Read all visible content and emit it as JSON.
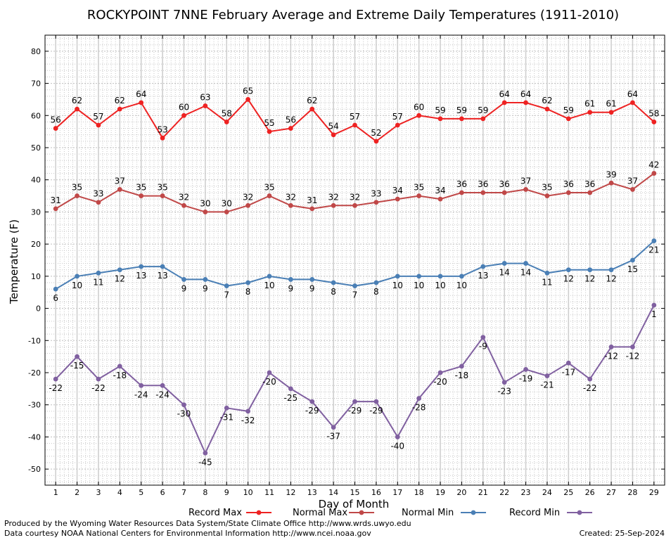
{
  "chart_data": {
    "type": "line",
    "title": "ROCKYPOINT 7NNE February Average and Extreme Daily Temperatures (1911-2010)",
    "xlabel": "Day of Month",
    "ylabel": "Temperature (F)",
    "x": [
      1,
      2,
      3,
      4,
      5,
      6,
      7,
      8,
      9,
      10,
      11,
      12,
      13,
      14,
      15,
      16,
      17,
      18,
      19,
      20,
      21,
      22,
      23,
      24,
      25,
      26,
      27,
      28,
      29
    ],
    "xlim": [
      0.5,
      29.5
    ],
    "ylim": [
      -55,
      85
    ],
    "yticks": [
      -50,
      -40,
      -30,
      -20,
      -10,
      0,
      10,
      20,
      30,
      40,
      50,
      60,
      70,
      80
    ],
    "grid": true,
    "legend_position": "bottom",
    "series": [
      {
        "name": "Record Max",
        "color": "#ee2222",
        "label_pos": "above",
        "values": [
          56,
          62,
          57,
          62,
          64,
          53,
          60,
          63,
          58,
          65,
          55,
          56,
          62,
          54,
          57,
          52,
          57,
          60,
          59,
          59,
          59,
          64,
          64,
          62,
          59,
          61,
          61,
          64,
          58
        ]
      },
      {
        "name": "Normal Max",
        "color": "#c04848",
        "label_pos": "above",
        "values": [
          31,
          35,
          33,
          37,
          35,
          35,
          32,
          30,
          30,
          32,
          35,
          32,
          31,
          32,
          32,
          33,
          34,
          35,
          34,
          36,
          36,
          36,
          37,
          35,
          36,
          36,
          39,
          37,
          42
        ]
      },
      {
        "name": "Normal Min",
        "color": "#4a7fb5",
        "label_pos": "below",
        "values": [
          6,
          10,
          11,
          12,
          13,
          13,
          9,
          9,
          7,
          8,
          10,
          9,
          9,
          8,
          7,
          8,
          10,
          10,
          10,
          10,
          13,
          14,
          14,
          11,
          12,
          12,
          12,
          15,
          21
        ]
      },
      {
        "name": "Record Min",
        "color": "#8060a0",
        "label_pos": "below",
        "values": [
          -22,
          -15,
          -22,
          -18,
          -24,
          -24,
          -30,
          -45,
          -31,
          -32,
          -20,
          -25,
          -29,
          -37,
          -29,
          -29,
          -40,
          -28,
          -20,
          -18,
          -9,
          -23,
          -19,
          -21,
          -17,
          -22,
          -12,
          -12,
          1
        ]
      }
    ]
  },
  "footer": {
    "line1": "Produced by the Wyoming Water Resources Data System/State Climate Office http://www.wrds.uwyo.edu",
    "line2": "Data courtesy NOAA National Centers for Environmental Information http://www.ncei.noaa.gov",
    "created": "Created:  25-Sep-2024"
  }
}
